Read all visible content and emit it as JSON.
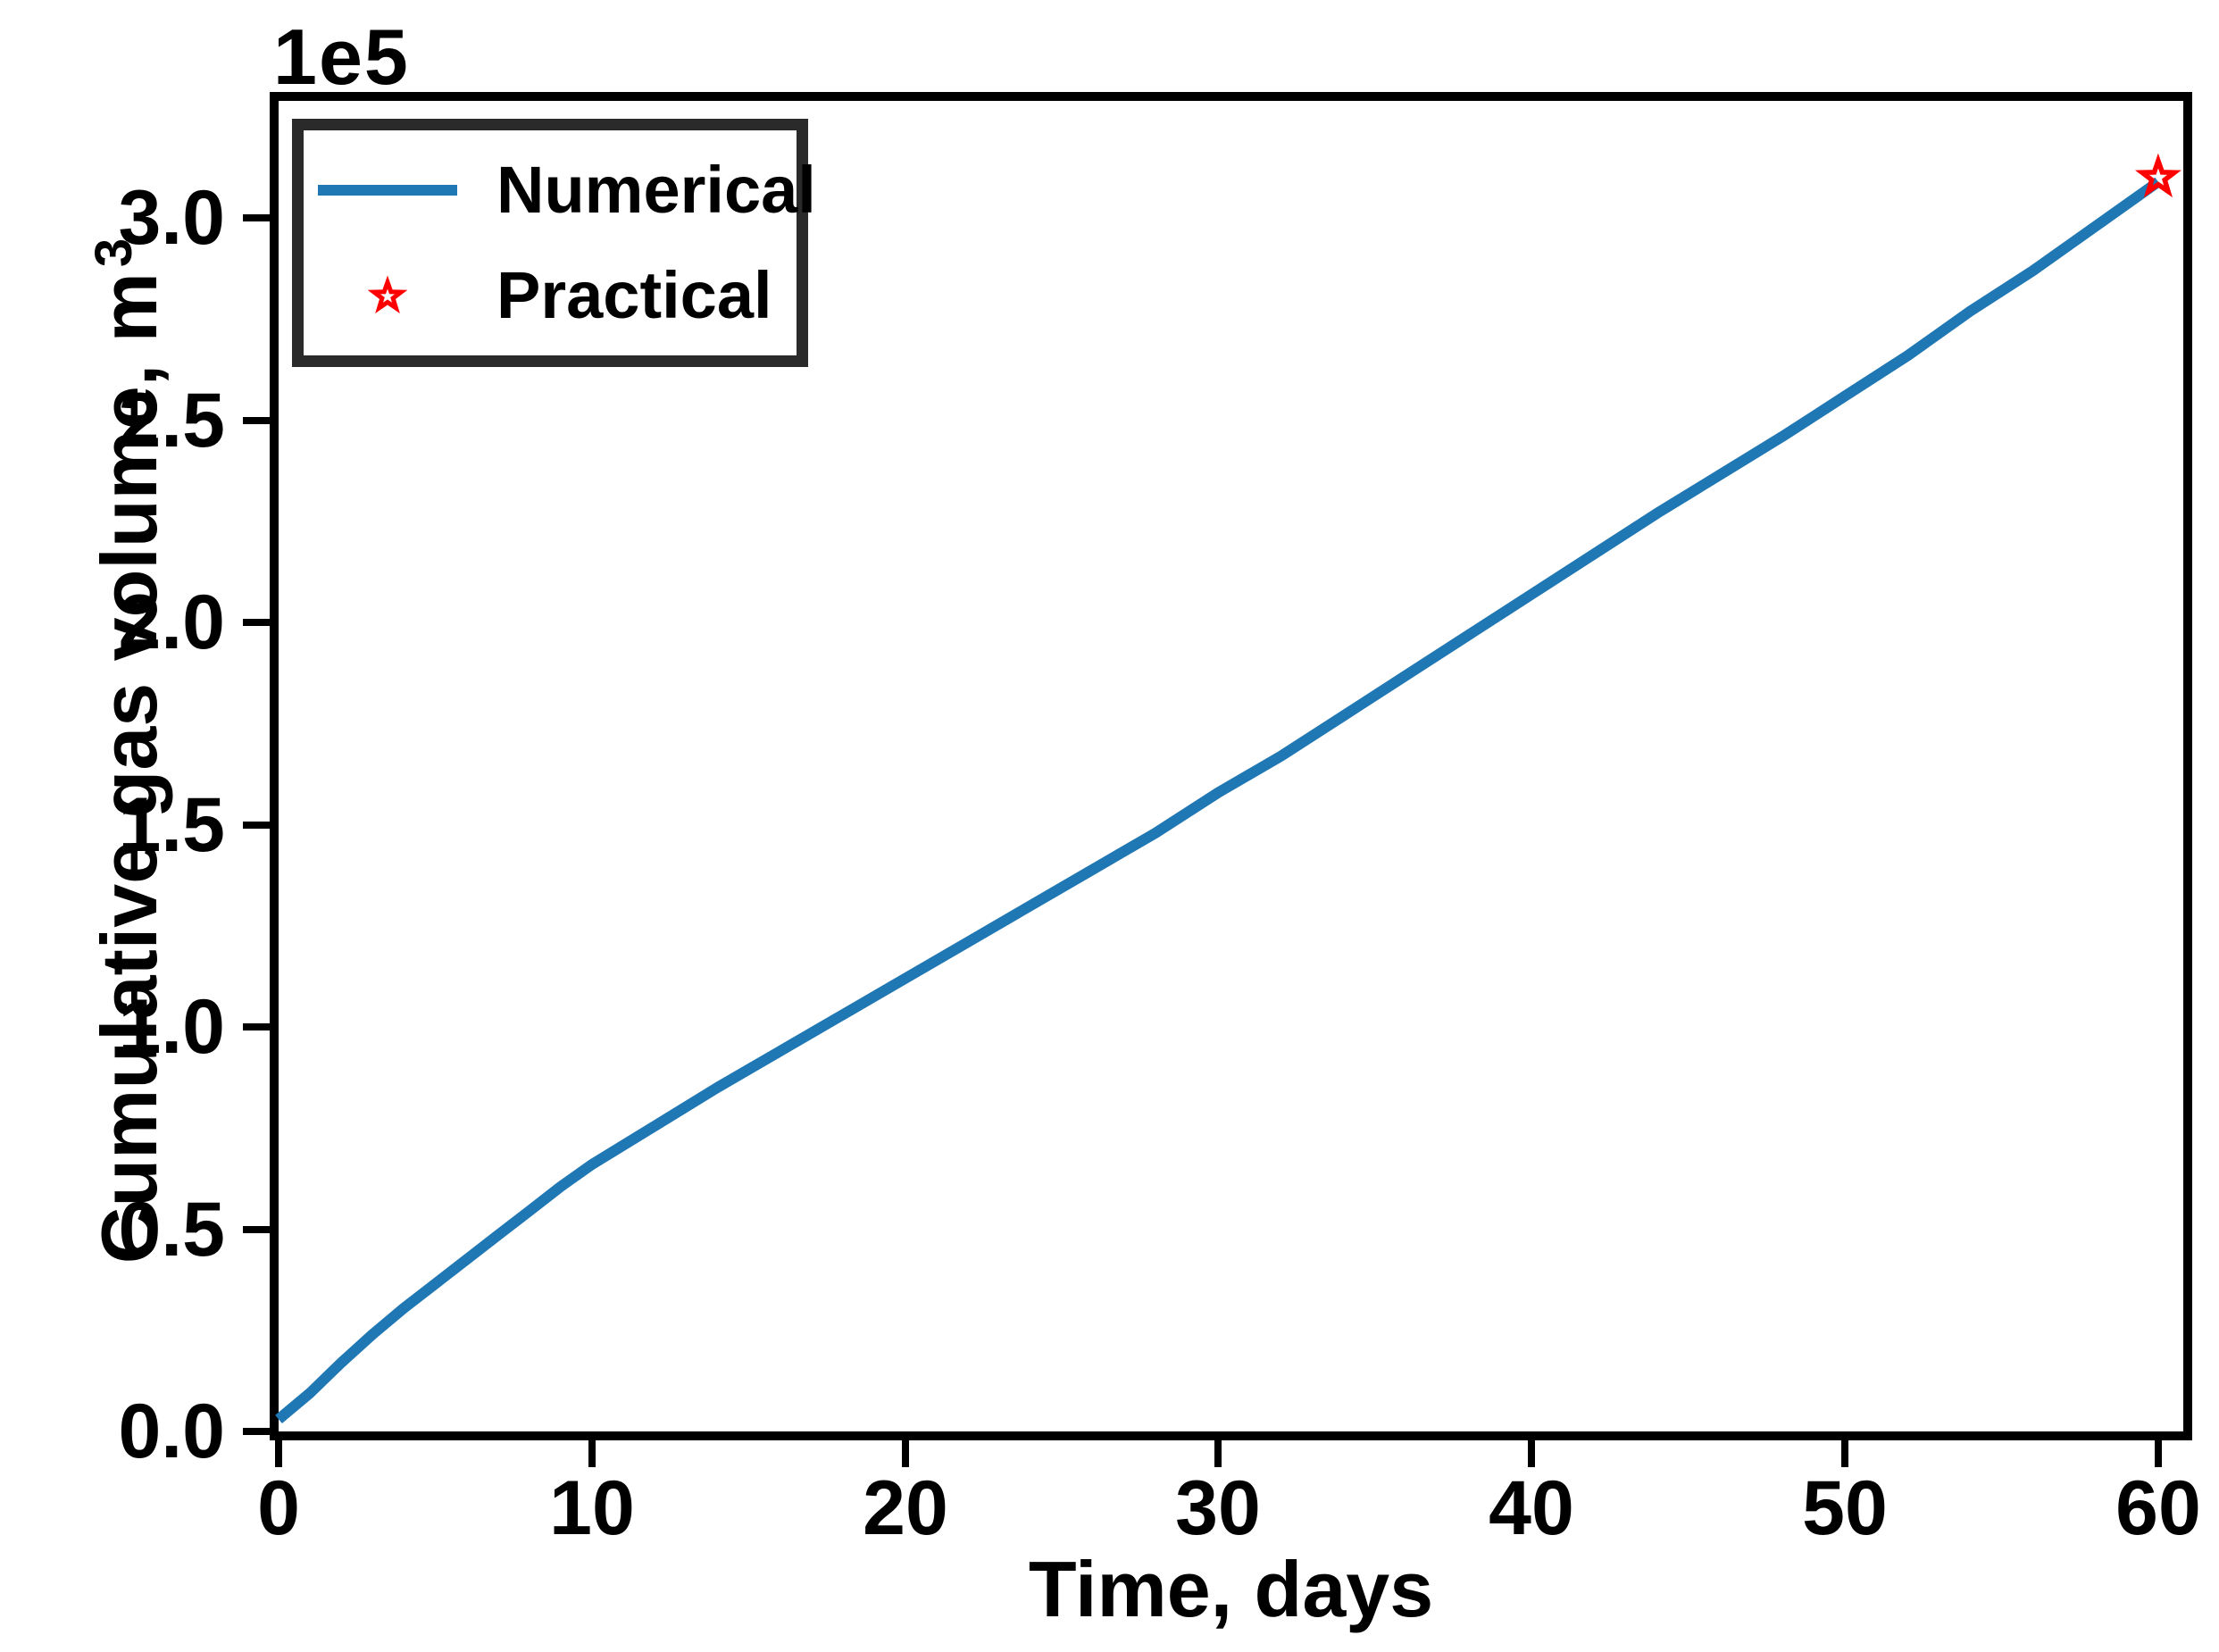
{
  "figure": {
    "background": "#ffffff",
    "spine_color": "#000000",
    "legend_border_color": "#2a2a2a"
  },
  "chart_data": {
    "type": "line",
    "title": "",
    "xlabel": "Time, days",
    "ylabel": "Cumulative gas volume, m³",
    "ylabel_base": "Cumulative gas volume, m",
    "ylabel_sup": "3",
    "offset_text": "1e5",
    "xlim": [
      0,
      60.8
    ],
    "ylim": [
      0,
      329000
    ],
    "grid": false,
    "legend_position": "upper left",
    "xticks": [
      {
        "value": 0,
        "label": "0"
      },
      {
        "value": 10,
        "label": "10"
      },
      {
        "value": 20,
        "label": "20"
      },
      {
        "value": 30,
        "label": "30"
      },
      {
        "value": 40,
        "label": "40"
      },
      {
        "value": 50,
        "label": "50"
      },
      {
        "value": 60,
        "label": "60"
      }
    ],
    "yticks": [
      {
        "value": 0,
        "label": "0.0"
      },
      {
        "value": 50000,
        "label": "0.5"
      },
      {
        "value": 100000,
        "label": "1.0"
      },
      {
        "value": 150000,
        "label": "1.5"
      },
      {
        "value": 200000,
        "label": "2.0"
      },
      {
        "value": 250000,
        "label": "2.5"
      },
      {
        "value": 300000,
        "label": "3.0"
      }
    ],
    "series": [
      {
        "name": "Numerical",
        "type": "line",
        "color": "#1f77b4",
        "x": [
          0,
          1,
          2,
          3,
          4,
          5,
          6,
          7,
          8,
          9,
          10,
          12,
          14,
          16,
          18,
          20,
          22,
          24,
          26,
          28,
          30,
          32,
          34,
          36,
          38,
          40,
          42,
          44,
          46,
          48,
          50,
          52,
          54,
          56,
          58,
          60
        ],
        "y": [
          3000,
          9500,
          17000,
          24000,
          30500,
          36500,
          42500,
          48500,
          54500,
          60500,
          66000,
          75500,
          85000,
          94000,
          103000,
          112000,
          121000,
          130000,
          139000,
          148000,
          158000,
          167000,
          177000,
          187000,
          197000,
          207000,
          217000,
          227000,
          236500,
          246000,
          256000,
          266000,
          277000,
          287000,
          298000,
          309000
        ]
      },
      {
        "name": "Practical",
        "type": "scatter",
        "marker": "star",
        "color": "#ff0000",
        "x": [
          60
        ],
        "y": [
          310000
        ]
      }
    ]
  }
}
